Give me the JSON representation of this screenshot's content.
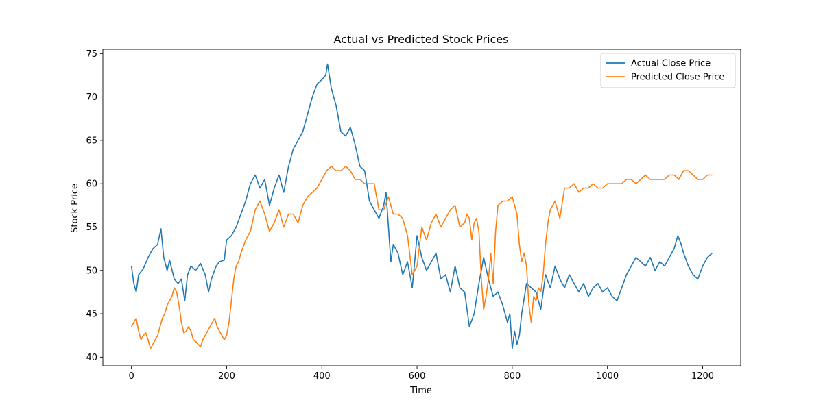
{
  "chart_data": {
    "type": "line",
    "title": "Actual vs Predicted Stock Prices",
    "xlabel": "Time",
    "ylabel": "Stock Price",
    "xlim": [
      -60,
      1280
    ],
    "ylim": [
      39,
      75.5
    ],
    "xticks": [
      0,
      200,
      400,
      600,
      800,
      1000,
      1200
    ],
    "yticks": [
      40,
      45,
      50,
      55,
      60,
      65,
      70,
      75
    ],
    "grid": false,
    "legend_position": "top-right",
    "series": [
      {
        "name": "Actual Close Price",
        "color": "#1f77b4",
        "x": [
          0,
          5,
          10,
          15,
          25,
          35,
          45,
          55,
          62,
          68,
          75,
          80,
          90,
          98,
          105,
          112,
          118,
          125,
          135,
          145,
          155,
          162,
          168,
          178,
          185,
          195,
          200,
          210,
          220,
          230,
          240,
          250,
          260,
          270,
          280,
          290,
          300,
          310,
          320,
          330,
          340,
          350,
          360,
          370,
          380,
          390,
          400,
          408,
          412,
          420,
          430,
          440,
          450,
          460,
          470,
          480,
          490,
          500,
          510,
          520,
          530,
          535,
          540,
          545,
          550,
          560,
          570,
          580,
          590,
          600,
          610,
          620,
          630,
          640,
          650,
          660,
          670,
          680,
          690,
          700,
          710,
          720,
          730,
          740,
          750,
          760,
          770,
          780,
          790,
          795,
          800,
          805,
          810,
          815,
          820,
          830,
          840,
          850,
          860,
          870,
          880,
          890,
          900,
          910,
          920,
          930,
          940,
          950,
          960,
          970,
          980,
          990,
          1000,
          1010,
          1020,
          1030,
          1040,
          1050,
          1060,
          1070,
          1080,
          1090,
          1100,
          1110,
          1120,
          1130,
          1140,
          1148,
          1155,
          1160,
          1170,
          1180,
          1190,
          1200,
          1210,
          1220
        ],
        "values": [
          50.5,
          48.5,
          47.5,
          49.5,
          50.2,
          51.5,
          52.5,
          53.0,
          54.8,
          51.5,
          50.0,
          51.2,
          49.0,
          48.5,
          49.0,
          46.5,
          49.5,
          50.5,
          50.0,
          50.8,
          49.5,
          47.5,
          49.0,
          50.5,
          51.0,
          51.2,
          53.5,
          54.0,
          55.0,
          56.5,
          58.0,
          60.0,
          61.0,
          59.5,
          60.5,
          57.5,
          59.5,
          61.0,
          59.0,
          62.0,
          64.0,
          65.0,
          66.0,
          68.0,
          70.0,
          71.5,
          72.0,
          72.5,
          73.8,
          71.0,
          69.0,
          66.0,
          65.5,
          66.5,
          64.5,
          62.0,
          61.5,
          58.0,
          57.0,
          56.0,
          57.5,
          59.0,
          55.0,
          51.0,
          53.0,
          52.0,
          49.5,
          51.0,
          48.0,
          54.0,
          51.5,
          50.0,
          51.0,
          52.0,
          49.0,
          49.5,
          47.5,
          50.5,
          48.0,
          47.5,
          43.5,
          45.0,
          48.5,
          51.5,
          49.0,
          47.0,
          47.5,
          46.0,
          44.0,
          45.0,
          41.0,
          43.0,
          41.5,
          42.5,
          45.0,
          48.5,
          48.0,
          47.5,
          45.5,
          49.5,
          48.0,
          50.5,
          49.0,
          48.0,
          49.5,
          48.5,
          47.5,
          48.5,
          47.0,
          48.0,
          48.5,
          47.5,
          48.0,
          47.0,
          46.5,
          48.0,
          49.5,
          50.5,
          51.5,
          51.0,
          50.5,
          51.5,
          50.0,
          51.0,
          50.5,
          51.5,
          52.5,
          54.0,
          53.0,
          52.0,
          50.5,
          49.5,
          49.0,
          50.5,
          51.5,
          52.0
        ]
      },
      {
        "name": "Predicted Close Price",
        "color": "#ff7f0e",
        "x": [
          0,
          5,
          10,
          15,
          20,
          25,
          30,
          35,
          40,
          45,
          50,
          55,
          60,
          65,
          70,
          75,
          80,
          85,
          90,
          95,
          100,
          105,
          110,
          115,
          120,
          125,
          130,
          135,
          140,
          145,
          150,
          155,
          160,
          165,
          170,
          175,
          180,
          185,
          190,
          195,
          200,
          205,
          210,
          215,
          220,
          225,
          230,
          240,
          250,
          260,
          270,
          280,
          290,
          300,
          310,
          320,
          330,
          340,
          350,
          360,
          370,
          380,
          390,
          400,
          410,
          420,
          430,
          440,
          450,
          460,
          470,
          480,
          490,
          500,
          510,
          520,
          530,
          540,
          550,
          560,
          570,
          580,
          590,
          600,
          610,
          620,
          630,
          640,
          650,
          660,
          670,
          680,
          690,
          700,
          705,
          710,
          715,
          720,
          725,
          730,
          735,
          740,
          745,
          750,
          755,
          760,
          765,
          770,
          780,
          790,
          800,
          810,
          815,
          820,
          825,
          830,
          835,
          840,
          845,
          850,
          855,
          860,
          865,
          870,
          875,
          880,
          890,
          900,
          910,
          920,
          930,
          940,
          950,
          960,
          970,
          980,
          990,
          1000,
          1010,
          1020,
          1030,
          1040,
          1050,
          1060,
          1070,
          1080,
          1090,
          1100,
          1110,
          1120,
          1130,
          1140,
          1150,
          1160,
          1170,
          1180,
          1190,
          1200,
          1210,
          1220
        ],
        "values": [
          43.5,
          44.0,
          44.5,
          43.0,
          42.0,
          42.5,
          42.8,
          42.0,
          41.0,
          41.5,
          42.0,
          42.5,
          43.5,
          44.5,
          45.0,
          46.0,
          46.5,
          47.0,
          48.0,
          47.5,
          46.0,
          44.0,
          42.8,
          43.0,
          43.5,
          43.0,
          42.0,
          41.8,
          41.5,
          41.2,
          42.0,
          42.5,
          43.0,
          43.5,
          44.0,
          44.5,
          43.5,
          43.0,
          42.5,
          42.0,
          42.5,
          44.0,
          46.5,
          49.0,
          50.5,
          51.0,
          52.0,
          53.5,
          54.5,
          57.0,
          58.0,
          56.5,
          54.5,
          55.5,
          57.0,
          55.0,
          56.5,
          56.5,
          55.5,
          57.5,
          58.5,
          59.0,
          59.5,
          60.5,
          61.5,
          62.0,
          61.5,
          61.5,
          62.0,
          61.5,
          60.5,
          60.5,
          60.0,
          60.0,
          60.0,
          57.0,
          57.0,
          58.5,
          56.5,
          56.5,
          56.0,
          54.0,
          49.5,
          50.5,
          55.0,
          53.5,
          55.5,
          56.5,
          55.0,
          56.0,
          57.0,
          57.5,
          55.0,
          55.5,
          56.5,
          56.0,
          53.5,
          55.5,
          56.0,
          54.5,
          49.0,
          45.5,
          47.0,
          49.0,
          52.0,
          48.5,
          54.5,
          57.5,
          58.0,
          58.0,
          58.5,
          56.5,
          53.0,
          51.0,
          52.0,
          50.5,
          46.0,
          44.0,
          47.0,
          46.5,
          48.0,
          47.5,
          49.5,
          53.0,
          55.5,
          57.0,
          58.0,
          56.0,
          59.5,
          59.5,
          60.0,
          59.0,
          59.5,
          59.5,
          60.0,
          59.5,
          59.5,
          60.0,
          60.0,
          60.0,
          60.0,
          60.5,
          60.5,
          60.0,
          60.5,
          61.0,
          60.5,
          60.5,
          60.5,
          60.5,
          61.0,
          61.0,
          60.5,
          61.5,
          61.5,
          61.0,
          60.5,
          60.5,
          61.0,
          61.0
        ]
      }
    ]
  }
}
